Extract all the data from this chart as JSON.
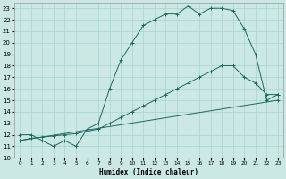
{
  "xlabel": "Humidex (Indice chaleur)",
  "bg_color": "#cce8e4",
  "grid_color": "#a8d4ce",
  "line_color": "#1a6860",
  "xlim": [
    -0.5,
    23.5
  ],
  "ylim": [
    10,
    23.5
  ],
  "xticks": [
    0,
    1,
    2,
    3,
    4,
    5,
    6,
    7,
    8,
    9,
    10,
    11,
    12,
    13,
    14,
    15,
    16,
    17,
    18,
    19,
    20,
    21,
    22,
    23
  ],
  "yticks": [
    10,
    11,
    12,
    13,
    14,
    15,
    16,
    17,
    18,
    19,
    20,
    21,
    22,
    23
  ],
  "line1_x": [
    0,
    1,
    2,
    3,
    4,
    5,
    6,
    7,
    8,
    9,
    10,
    11,
    12,
    13,
    14,
    15,
    16,
    17,
    18,
    19,
    20,
    21,
    22,
    23
  ],
  "line1_y": [
    12.0,
    12.0,
    11.5,
    11.0,
    11.5,
    11.0,
    12.5,
    13.0,
    16.0,
    18.5,
    20.0,
    21.5,
    22.0,
    22.5,
    22.5,
    23.2,
    22.5,
    23.0,
    23.0,
    22.8,
    21.2,
    19.0,
    15.0,
    15.5
  ],
  "line2_x": [
    0,
    1,
    2,
    3,
    4,
    5,
    6,
    7,
    8,
    9,
    10,
    11,
    12,
    13,
    14,
    15,
    16,
    17,
    18,
    19,
    20,
    21,
    22,
    23
  ],
  "line2_y": [
    11.5,
    11.7,
    11.8,
    11.9,
    12.0,
    12.1,
    12.3,
    12.5,
    13.0,
    13.5,
    14.0,
    14.5,
    15.0,
    15.5,
    16.0,
    16.5,
    17.0,
    17.5,
    18.0,
    18.0,
    17.0,
    16.5,
    15.5,
    15.5
  ],
  "line3_x": [
    0,
    23
  ],
  "line3_y": [
    11.5,
    15.0
  ]
}
